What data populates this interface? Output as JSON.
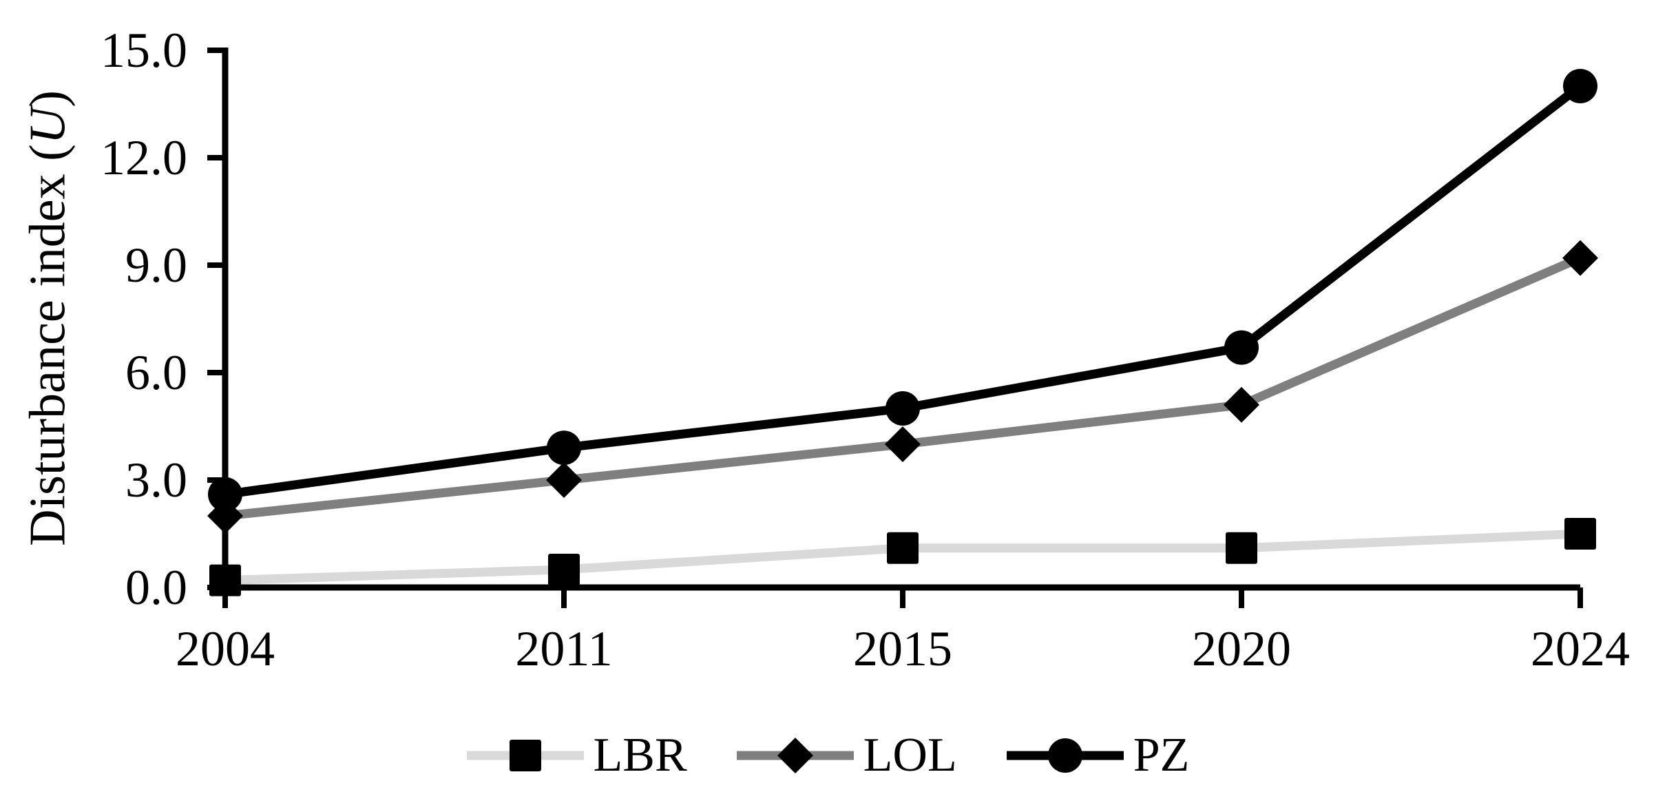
{
  "chart_data": {
    "type": "line",
    "title": "",
    "xlabel": "",
    "ylabel": {
      "prefix": "Disturbance index (",
      "variable": "U",
      "suffix": ")"
    },
    "categories": [
      "2004",
      "2011",
      "2015",
      "2020",
      "2024"
    ],
    "ylim": [
      0,
      15
    ],
    "yticks": [
      0,
      3,
      6,
      9,
      12,
      15
    ],
    "ytick_labels": [
      "0.0",
      "3.0",
      "6.0",
      "9.0",
      "12.0",
      "15.0"
    ],
    "grid": false,
    "legend_position": "bottom-center",
    "axis_color": "#000000",
    "series": [
      {
        "name": "LBR",
        "marker": "square",
        "line_color": "#d9d9d9",
        "marker_color": "#000000",
        "values": [
          0.2,
          0.5,
          1.1,
          1.1,
          1.5
        ]
      },
      {
        "name": "LOL",
        "marker": "diamond",
        "line_color": "#7f7f7f",
        "marker_color": "#000000",
        "values": [
          2.0,
          3.0,
          4.0,
          5.1,
          9.2
        ]
      },
      {
        "name": "PZ",
        "marker": "circle",
        "line_color": "#000000",
        "marker_color": "#000000",
        "values": [
          2.6,
          3.9,
          5.0,
          6.7,
          14.0
        ]
      }
    ]
  }
}
